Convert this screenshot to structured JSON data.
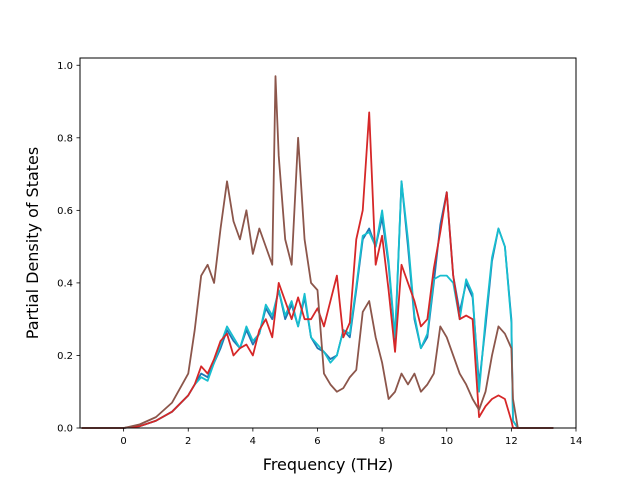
{
  "chart_data": {
    "type": "line",
    "title": "",
    "xlabel": "Frequency (THz)",
    "ylabel": "Partial Density of States",
    "xlim": [
      -1.35,
      14.0
    ],
    "ylim": [
      0.0,
      1.02
    ],
    "x_ticks": [
      0,
      2,
      4,
      6,
      8,
      10,
      12,
      14
    ],
    "y_ticks": [
      0.0,
      0.2,
      0.4,
      0.6,
      0.8,
      1.0
    ],
    "x_tick_labels": [
      "0",
      "2",
      "4",
      "6",
      "8",
      "10",
      "12",
      "14"
    ],
    "y_tick_labels": [
      "0.0",
      "0.2",
      "0.4",
      "0.6",
      "0.8",
      "1.0"
    ],
    "grid": false,
    "legend": "none",
    "series": [
      {
        "color": "#1f77b4",
        "points": [
          [
            -1.3,
            0
          ],
          [
            0,
            0
          ],
          [
            0.5,
            0.005
          ],
          [
            1.0,
            0.02
          ],
          [
            1.5,
            0.045
          ],
          [
            2.0,
            0.09
          ],
          [
            2.2,
            0.12
          ],
          [
            2.4,
            0.15
          ],
          [
            2.6,
            0.14
          ],
          [
            2.8,
            0.18
          ],
          [
            3.0,
            0.22
          ],
          [
            3.2,
            0.27
          ],
          [
            3.4,
            0.24
          ],
          [
            3.6,
            0.22
          ],
          [
            3.8,
            0.27
          ],
          [
            4.0,
            0.23
          ],
          [
            4.2,
            0.26
          ],
          [
            4.4,
            0.33
          ],
          [
            4.6,
            0.3
          ],
          [
            4.8,
            0.38
          ],
          [
            5.0,
            0.3
          ],
          [
            5.2,
            0.34
          ],
          [
            5.4,
            0.28
          ],
          [
            5.6,
            0.36
          ],
          [
            5.8,
            0.25
          ],
          [
            6.0,
            0.22
          ],
          [
            6.2,
            0.21
          ],
          [
            6.4,
            0.19
          ],
          [
            6.6,
            0.2
          ],
          [
            6.8,
            0.27
          ],
          [
            7.0,
            0.25
          ],
          [
            7.2,
            0.38
          ],
          [
            7.4,
            0.52
          ],
          [
            7.6,
            0.55
          ],
          [
            7.8,
            0.5
          ],
          [
            8.0,
            0.58
          ],
          [
            8.2,
            0.45
          ],
          [
            8.4,
            0.24
          ],
          [
            8.6,
            0.68
          ],
          [
            8.8,
            0.5
          ],
          [
            9.0,
            0.3
          ],
          [
            9.2,
            0.22
          ],
          [
            9.4,
            0.25
          ],
          [
            9.6,
            0.4
          ],
          [
            9.8,
            0.56
          ],
          [
            10.0,
            0.65
          ],
          [
            10.2,
            0.42
          ],
          [
            10.4,
            0.32
          ],
          [
            10.6,
            0.4
          ],
          [
            10.8,
            0.36
          ],
          [
            11.0,
            0.12
          ],
          [
            11.2,
            0.28
          ],
          [
            11.4,
            0.46
          ],
          [
            11.6,
            0.55
          ],
          [
            11.8,
            0.5
          ],
          [
            12.0,
            0.3
          ],
          [
            12.05,
            0.02
          ],
          [
            12.2,
            0
          ],
          [
            13.3,
            0
          ]
        ]
      },
      {
        "color": "#17becf",
        "points": [
          [
            -1.3,
            0
          ],
          [
            0,
            0
          ],
          [
            0.5,
            0.005
          ],
          [
            1.0,
            0.02
          ],
          [
            1.5,
            0.045
          ],
          [
            2.0,
            0.09
          ],
          [
            2.2,
            0.12
          ],
          [
            2.4,
            0.14
          ],
          [
            2.6,
            0.13
          ],
          [
            2.8,
            0.18
          ],
          [
            3.0,
            0.23
          ],
          [
            3.2,
            0.28
          ],
          [
            3.4,
            0.25
          ],
          [
            3.6,
            0.22
          ],
          [
            3.8,
            0.28
          ],
          [
            4.0,
            0.24
          ],
          [
            4.2,
            0.26
          ],
          [
            4.4,
            0.34
          ],
          [
            4.6,
            0.31
          ],
          [
            4.8,
            0.38
          ],
          [
            5.0,
            0.31
          ],
          [
            5.2,
            0.35
          ],
          [
            5.4,
            0.28
          ],
          [
            5.6,
            0.37
          ],
          [
            5.8,
            0.25
          ],
          [
            6.0,
            0.23
          ],
          [
            6.2,
            0.21
          ],
          [
            6.4,
            0.18
          ],
          [
            6.6,
            0.2
          ],
          [
            6.8,
            0.27
          ],
          [
            7.0,
            0.26
          ],
          [
            7.2,
            0.39
          ],
          [
            7.4,
            0.53
          ],
          [
            7.6,
            0.54
          ],
          [
            7.8,
            0.5
          ],
          [
            8.0,
            0.6
          ],
          [
            8.2,
            0.46
          ],
          [
            8.4,
            0.25
          ],
          [
            8.6,
            0.68
          ],
          [
            8.8,
            0.52
          ],
          [
            9.0,
            0.31
          ],
          [
            9.2,
            0.22
          ],
          [
            9.4,
            0.26
          ],
          [
            9.6,
            0.41
          ],
          [
            9.8,
            0.42
          ],
          [
            10.0,
            0.42
          ],
          [
            10.2,
            0.4
          ],
          [
            10.4,
            0.3
          ],
          [
            10.6,
            0.41
          ],
          [
            10.8,
            0.37
          ],
          [
            11.0,
            0.1
          ],
          [
            11.2,
            0.3
          ],
          [
            11.4,
            0.47
          ],
          [
            11.6,
            0.55
          ],
          [
            11.8,
            0.5
          ],
          [
            12.0,
            0.29
          ],
          [
            12.05,
            0.02
          ],
          [
            12.2,
            0
          ],
          [
            13.3,
            0
          ]
        ]
      },
      {
        "color": "#d62728",
        "points": [
          [
            -1.3,
            0
          ],
          [
            0,
            0
          ],
          [
            0.5,
            0.005
          ],
          [
            1.0,
            0.02
          ],
          [
            1.5,
            0.045
          ],
          [
            2.0,
            0.09
          ],
          [
            2.2,
            0.12
          ],
          [
            2.4,
            0.17
          ],
          [
            2.6,
            0.15
          ],
          [
            2.8,
            0.19
          ],
          [
            3.0,
            0.24
          ],
          [
            3.2,
            0.26
          ],
          [
            3.4,
            0.2
          ],
          [
            3.6,
            0.22
          ],
          [
            3.8,
            0.23
          ],
          [
            4.0,
            0.2
          ],
          [
            4.2,
            0.27
          ],
          [
            4.4,
            0.3
          ],
          [
            4.6,
            0.25
          ],
          [
            4.8,
            0.4
          ],
          [
            5.0,
            0.35
          ],
          [
            5.2,
            0.3
          ],
          [
            5.4,
            0.36
          ],
          [
            5.6,
            0.3
          ],
          [
            5.8,
            0.3
          ],
          [
            6.0,
            0.33
          ],
          [
            6.2,
            0.28
          ],
          [
            6.4,
            0.35
          ],
          [
            6.6,
            0.42
          ],
          [
            6.8,
            0.25
          ],
          [
            7.0,
            0.29
          ],
          [
            7.2,
            0.52
          ],
          [
            7.4,
            0.6
          ],
          [
            7.6,
            0.87
          ],
          [
            7.8,
            0.45
          ],
          [
            8.0,
            0.53
          ],
          [
            8.2,
            0.38
          ],
          [
            8.4,
            0.21
          ],
          [
            8.6,
            0.45
          ],
          [
            8.8,
            0.4
          ],
          [
            9.0,
            0.35
          ],
          [
            9.2,
            0.28
          ],
          [
            9.4,
            0.3
          ],
          [
            9.6,
            0.44
          ],
          [
            9.8,
            0.54
          ],
          [
            10.0,
            0.65
          ],
          [
            10.2,
            0.42
          ],
          [
            10.4,
            0.3
          ],
          [
            10.6,
            0.31
          ],
          [
            10.8,
            0.3
          ],
          [
            11.0,
            0.03
          ],
          [
            11.2,
            0.06
          ],
          [
            11.4,
            0.08
          ],
          [
            11.6,
            0.09
          ],
          [
            11.8,
            0.08
          ],
          [
            12.0,
            0.02
          ],
          [
            12.05,
            0
          ],
          [
            13.3,
            0
          ]
        ]
      },
      {
        "color": "#8c564b",
        "points": [
          [
            -1.3,
            0
          ],
          [
            0,
            0
          ],
          [
            0.5,
            0.01
          ],
          [
            1.0,
            0.03
          ],
          [
            1.5,
            0.07
          ],
          [
            2.0,
            0.15
          ],
          [
            2.2,
            0.27
          ],
          [
            2.4,
            0.42
          ],
          [
            2.6,
            0.45
          ],
          [
            2.8,
            0.4
          ],
          [
            3.0,
            0.55
          ],
          [
            3.2,
            0.68
          ],
          [
            3.4,
            0.57
          ],
          [
            3.6,
            0.52
          ],
          [
            3.8,
            0.6
          ],
          [
            4.0,
            0.48
          ],
          [
            4.2,
            0.55
          ],
          [
            4.4,
            0.5
          ],
          [
            4.6,
            0.45
          ],
          [
            4.7,
            0.97
          ],
          [
            4.8,
            0.75
          ],
          [
            5.0,
            0.52
          ],
          [
            5.2,
            0.45
          ],
          [
            5.4,
            0.8
          ],
          [
            5.6,
            0.52
          ],
          [
            5.8,
            0.4
          ],
          [
            6.0,
            0.38
          ],
          [
            6.2,
            0.15
          ],
          [
            6.4,
            0.12
          ],
          [
            6.6,
            0.1
          ],
          [
            6.8,
            0.11
          ],
          [
            7.0,
            0.14
          ],
          [
            7.2,
            0.16
          ],
          [
            7.4,
            0.32
          ],
          [
            7.6,
            0.35
          ],
          [
            7.8,
            0.25
          ],
          [
            8.0,
            0.18
          ],
          [
            8.2,
            0.08
          ],
          [
            8.4,
            0.1
          ],
          [
            8.6,
            0.15
          ],
          [
            8.8,
            0.12
          ],
          [
            9.0,
            0.15
          ],
          [
            9.2,
            0.1
          ],
          [
            9.4,
            0.12
          ],
          [
            9.6,
            0.15
          ],
          [
            9.8,
            0.28
          ],
          [
            10.0,
            0.25
          ],
          [
            10.2,
            0.2
          ],
          [
            10.4,
            0.15
          ],
          [
            10.6,
            0.12
          ],
          [
            10.8,
            0.08
          ],
          [
            11.0,
            0.05
          ],
          [
            11.2,
            0.1
          ],
          [
            11.4,
            0.2
          ],
          [
            11.6,
            0.28
          ],
          [
            11.8,
            0.26
          ],
          [
            12.0,
            0.22
          ],
          [
            12.05,
            0.08
          ],
          [
            12.2,
            0
          ],
          [
            13.3,
            0
          ]
        ]
      }
    ]
  }
}
